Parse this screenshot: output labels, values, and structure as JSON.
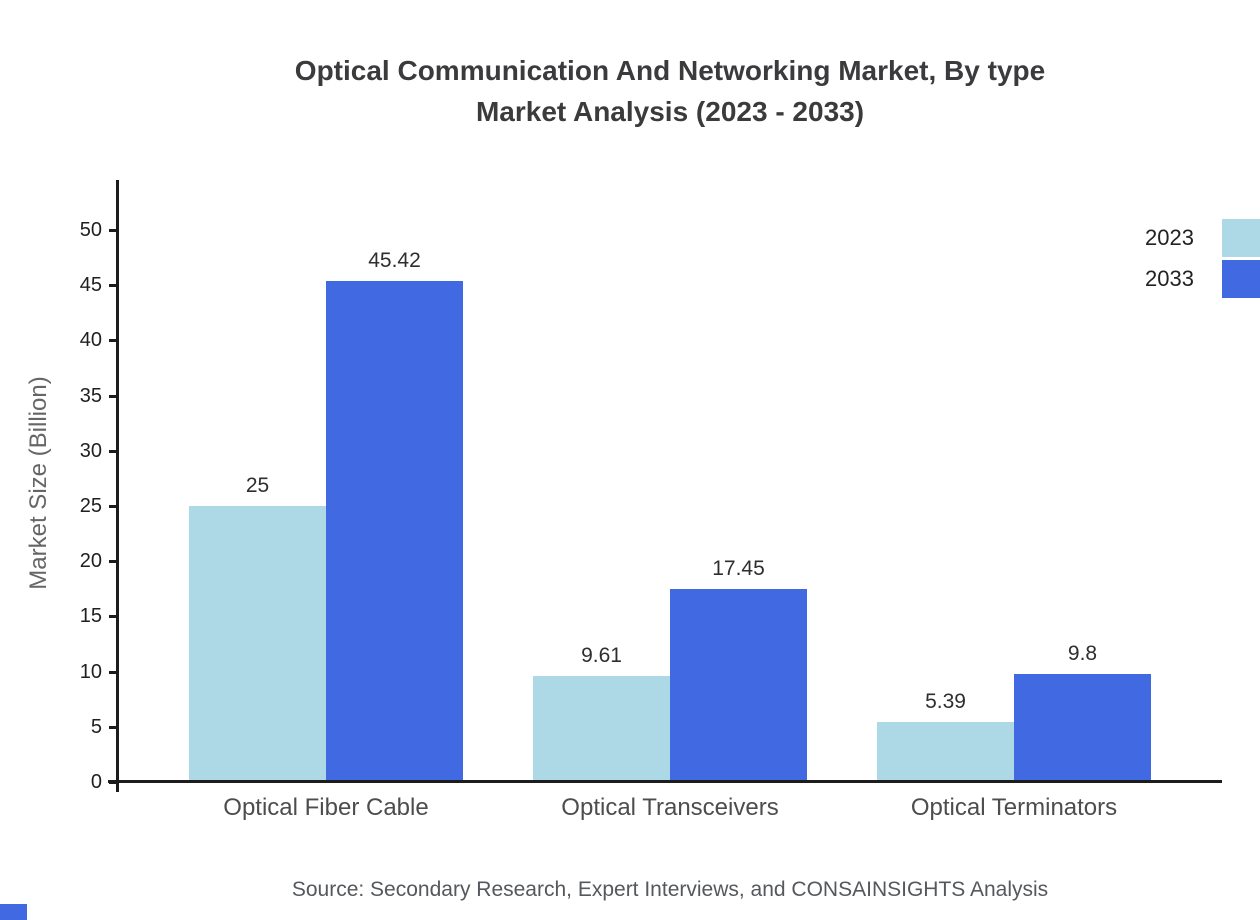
{
  "title": {
    "line1": "Optical Communication And Networking Market, By type",
    "line2": "Market Analysis (2023 - 2033)"
  },
  "source": "Source: Secondary Research, Expert Interviews, and CONSAINSIGHTS Analysis",
  "chart_data": {
    "type": "bar",
    "title": "Optical Communication And Networking Market, By type Market Analysis (2023 - 2033)",
    "categories": [
      "Optical Fiber Cable",
      "Optical Transceivers",
      "Optical Terminators"
    ],
    "series": [
      {
        "name": "2023",
        "color": "#ADD8E6",
        "values": [
          25,
          9.61,
          5.39
        ]
      },
      {
        "name": "2033",
        "color": "#4169E1",
        "values": [
          45.42,
          17.45,
          9.8
        ]
      }
    ],
    "value_labels": [
      [
        "25",
        "9.61",
        "5.39"
      ],
      [
        "45.42",
        "17.45",
        "9.8"
      ]
    ],
    "ylabel": "Market Size (Billion)",
    "xlabel": "",
    "ylim": [
      0,
      50
    ],
    "ytick_step": 5,
    "grid": false,
    "legend_position": "top-right"
  }
}
